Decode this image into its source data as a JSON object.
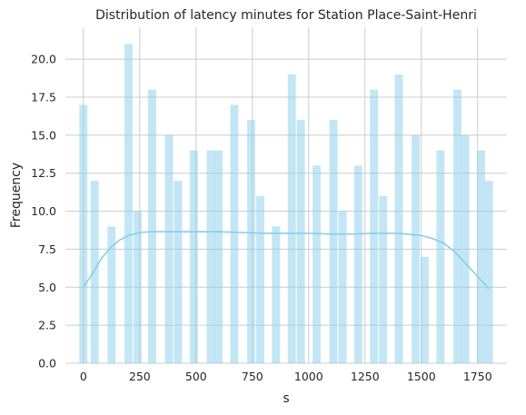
{
  "chart_data": {
    "type": "bar",
    "subtype": "histogram with kde",
    "title": "Distribution of latency minutes for Station Place-Saint-Henri",
    "xlabel": "s",
    "ylabel": "Frequency",
    "xlim": [
      -80,
      1880
    ],
    "ylim": [
      0,
      22.1
    ],
    "xticks": [
      0,
      250,
      500,
      750,
      1000,
      1250,
      1500,
      1750
    ],
    "xtick_labels": [
      "0",
      "250",
      "500",
      "750",
      "1000",
      "1250",
      "1500",
      "1750"
    ],
    "yticks": [
      0,
      2.5,
      5,
      7.5,
      10,
      12.5,
      15,
      17.5,
      20
    ],
    "ytick_labels": [
      "0.0",
      "2.5",
      "5.0",
      "7.5",
      "10.0",
      "12.5",
      "15.0",
      "17.5",
      "20.0"
    ],
    "grid": true,
    "bar_color": "#87ceeb",
    "bins": [
      {
        "center": 0,
        "value": 17
      },
      {
        "center": 50,
        "value": 12
      },
      {
        "center": 125,
        "value": 9
      },
      {
        "center": 200,
        "value": 21
      },
      {
        "center": 240,
        "value": 10
      },
      {
        "center": 305,
        "value": 18
      },
      {
        "center": 380,
        "value": 15
      },
      {
        "center": 420,
        "value": 12
      },
      {
        "center": 490,
        "value": 14
      },
      {
        "center": 565,
        "value": 14
      },
      {
        "center": 600,
        "value": 14
      },
      {
        "center": 670,
        "value": 17
      },
      {
        "center": 745,
        "value": 16
      },
      {
        "center": 785,
        "value": 11
      },
      {
        "center": 855,
        "value": 9
      },
      {
        "center": 925,
        "value": 19
      },
      {
        "center": 965,
        "value": 16
      },
      {
        "center": 1035,
        "value": 13
      },
      {
        "center": 1110,
        "value": 16
      },
      {
        "center": 1150,
        "value": 10
      },
      {
        "center": 1220,
        "value": 13
      },
      {
        "center": 1290,
        "value": 18
      },
      {
        "center": 1330,
        "value": 11
      },
      {
        "center": 1400,
        "value": 19
      },
      {
        "center": 1475,
        "value": 15
      },
      {
        "center": 1515,
        "value": 7
      },
      {
        "center": 1585,
        "value": 14
      },
      {
        "center": 1660,
        "value": 18
      },
      {
        "center": 1695,
        "value": 15
      },
      {
        "center": 1765,
        "value": 14
      },
      {
        "center": 1800,
        "value": 12
      }
    ],
    "bin_width": 36,
    "kde": {
      "x": [
        0,
        40,
        80,
        120,
        160,
        200,
        250,
        300,
        400,
        500,
        600,
        700,
        800,
        900,
        1000,
        1100,
        1200,
        1300,
        1400,
        1500,
        1550,
        1600,
        1650,
        1700,
        1750,
        1800
      ],
      "y": [
        5.0,
        5.9,
        6.9,
        7.6,
        8.1,
        8.4,
        8.6,
        8.65,
        8.65,
        8.65,
        8.65,
        8.6,
        8.55,
        8.55,
        8.55,
        8.5,
        8.5,
        8.55,
        8.55,
        8.4,
        8.2,
        7.9,
        7.3,
        6.5,
        5.7,
        4.9
      ]
    }
  }
}
